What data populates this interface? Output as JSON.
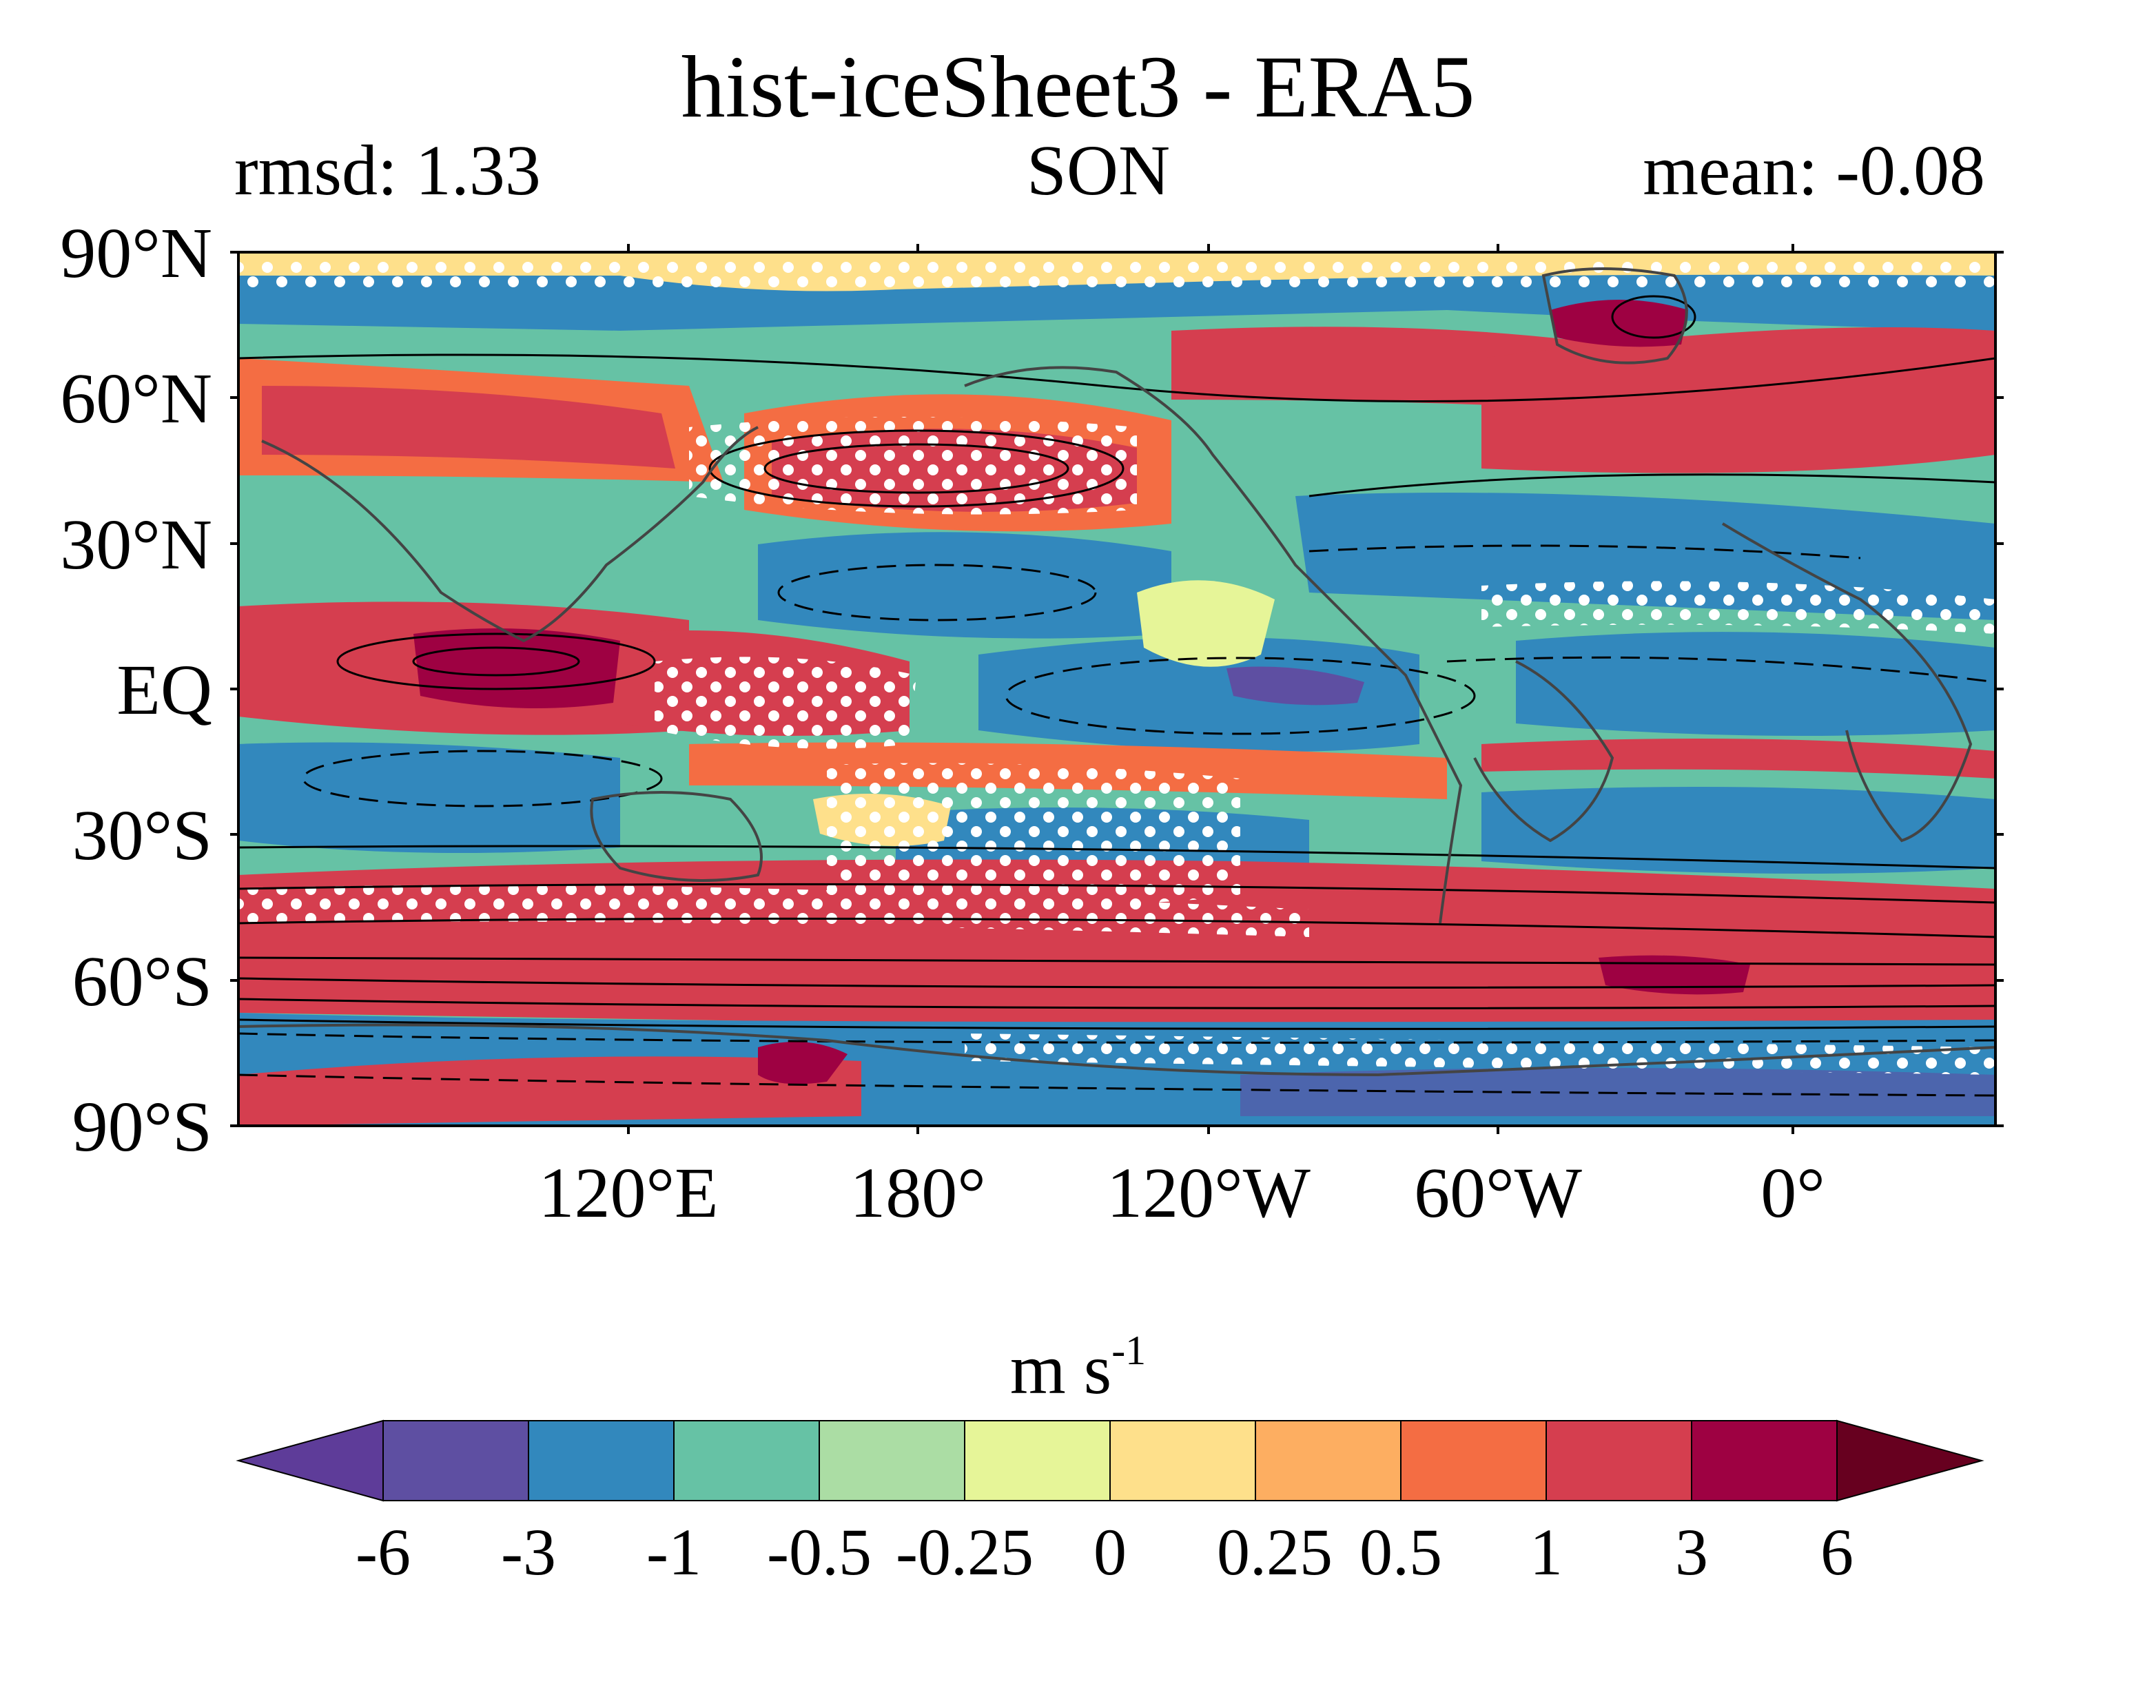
{
  "figure": {
    "title": "hist-iceSheet3 - ERA5",
    "left_subtitle": "rmsd: 1.33",
    "center_subtitle": "SON",
    "right_subtitle": "mean: -0.08"
  },
  "map": {
    "projection": "equirectangular",
    "lat_ticks": [
      "90°N",
      "60°N",
      "30°N",
      "EQ",
      "30°S",
      "60°S",
      "90°S"
    ],
    "lon_ticks": [
      "120°E",
      "180°",
      "120°W",
      "60°W",
      "0°"
    ],
    "stippling_color": "#ffffff",
    "contour_color": "#000000",
    "coastline_color": "#444444"
  },
  "colorbar": {
    "units_base": "m s",
    "units_exponent": "-1",
    "extend": "both",
    "tick_labels": [
      "-6",
      "-3",
      "-1",
      "-0.5",
      "-0.25",
      "0",
      "0.25",
      "0.5",
      "1",
      "3",
      "6"
    ],
    "colors": [
      "#5e3c99",
      "#5e4fa2",
      "#3288bd",
      "#66c2a5",
      "#abdda4",
      "#e6f598",
      "#fee08b",
      "#fdae61",
      "#f46d43",
      "#d53e4f",
      "#9e0142",
      "#67001f"
    ]
  }
}
